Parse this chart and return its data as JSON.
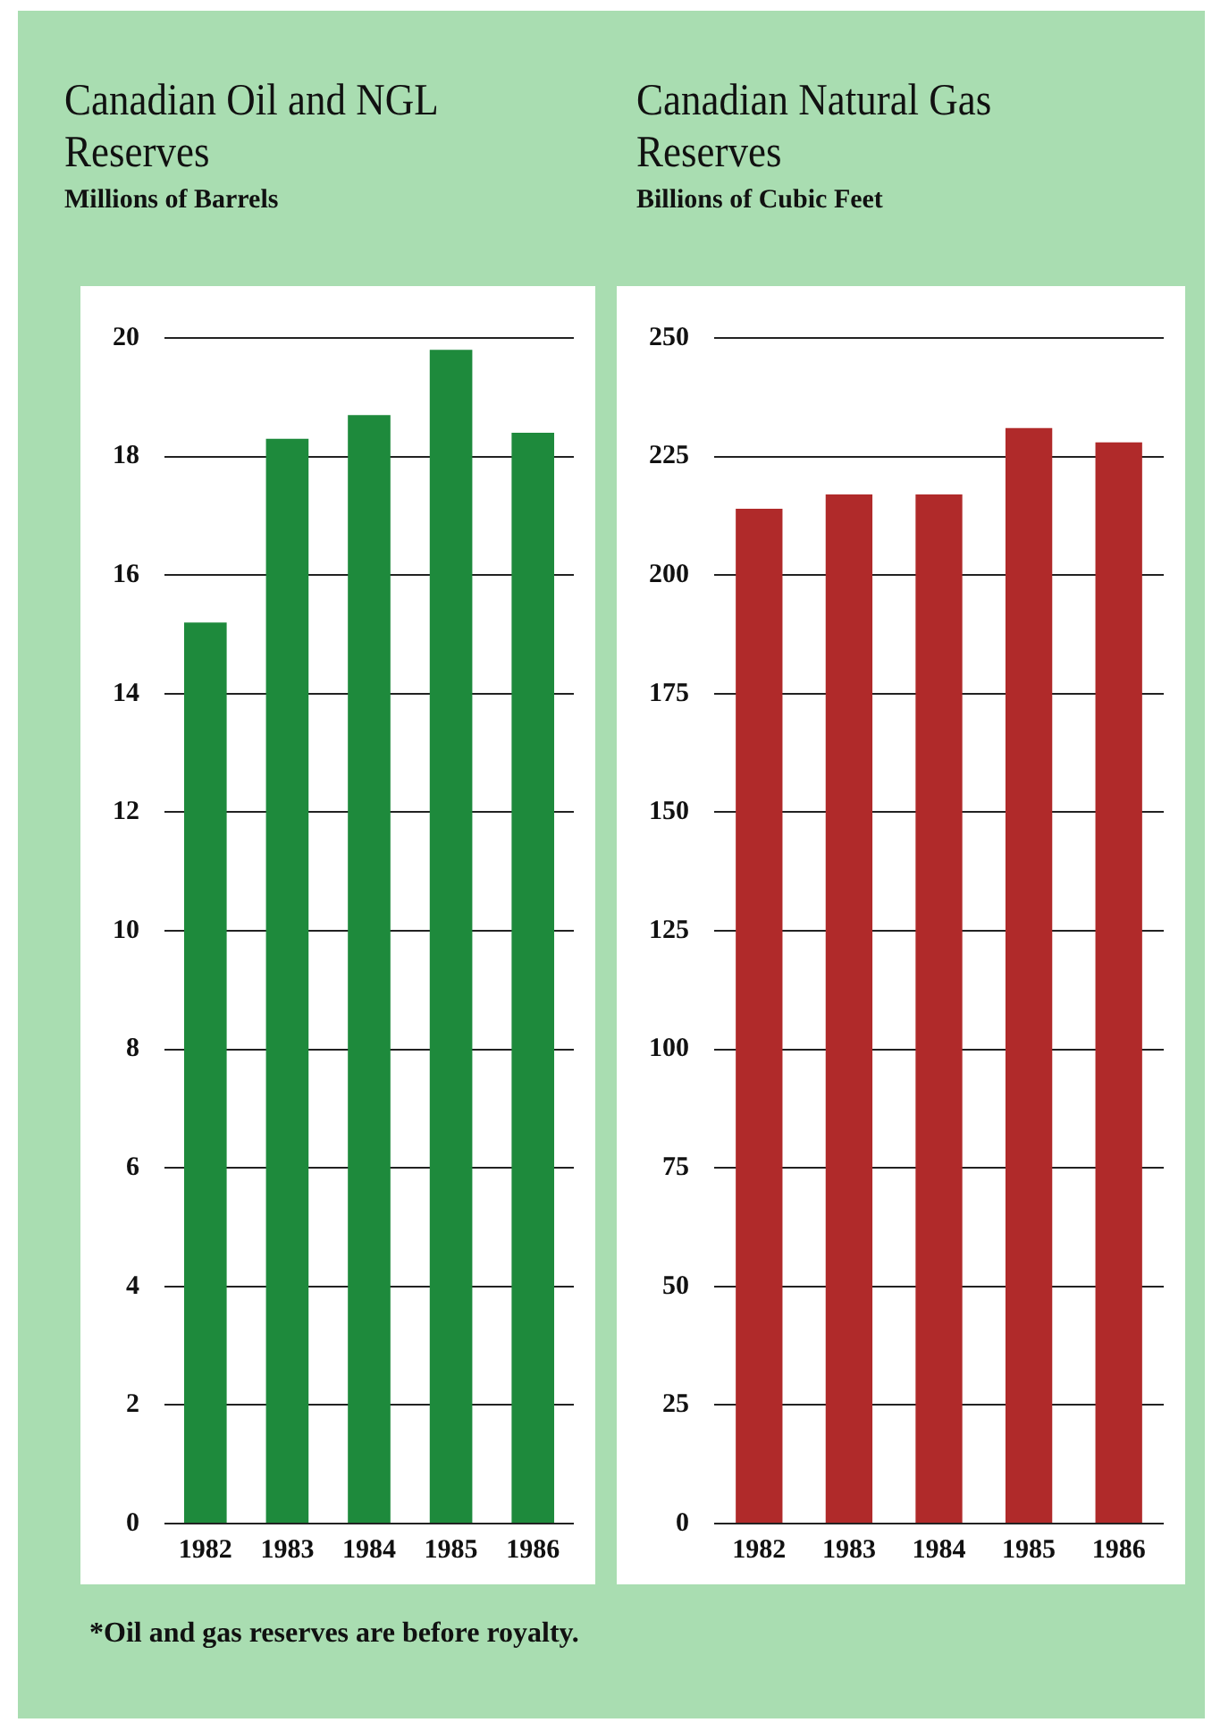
{
  "chart_data": [
    {
      "type": "bar",
      "title": "Canadian Oil and NGL Reserves",
      "subtitle": "Millions of Barrels",
      "categories": [
        "1982",
        "1983",
        "1984",
        "1985",
        "1986"
      ],
      "values": [
        15.2,
        18.3,
        18.7,
        19.8,
        18.4
      ],
      "color": "#1e8a3c",
      "ylim": [
        0,
        20
      ],
      "yticks": [
        0,
        2,
        4,
        6,
        8,
        10,
        12,
        14,
        16,
        18,
        20
      ],
      "grid": "y",
      "legend": false
    },
    {
      "type": "bar",
      "title": "Canadian Natural Gas Reserves",
      "subtitle": "Billions of Cubic Feet",
      "categories": [
        "1982",
        "1983",
        "1984",
        "1985",
        "1986"
      ],
      "values": [
        214,
        217,
        217,
        231,
        228
      ],
      "color": "#b02a2a",
      "ylim": [
        0,
        250
      ],
      "yticks": [
        0,
        25,
        50,
        75,
        100,
        125,
        150,
        175,
        200,
        225,
        250
      ],
      "grid": "y",
      "legend": false,
      "annotations": [
        "*Oil and gas reserves are before royalty."
      ]
    }
  ]
}
